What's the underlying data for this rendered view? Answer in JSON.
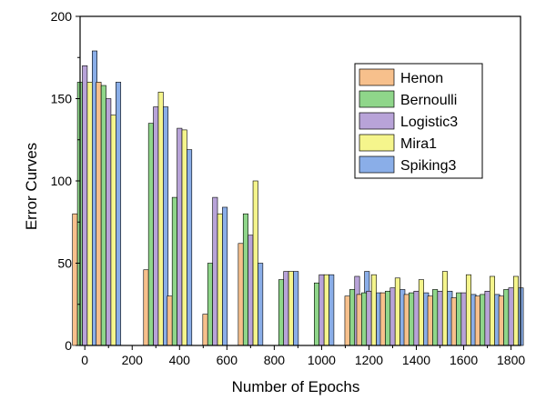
{
  "chart_data": {
    "type": "bar",
    "xlabel": "Number of Epochs",
    "ylabel": "Error Curves",
    "xlim": [
      -20,
      1840
    ],
    "ylim": [
      0,
      200
    ],
    "xticks": [
      0,
      200,
      400,
      600,
      800,
      1000,
      1200,
      1400,
      1600,
      1800
    ],
    "yticks": [
      0,
      50,
      100,
      150,
      200
    ],
    "grid": false,
    "legend_position": "top-right",
    "group_x": [
      0,
      100,
      300,
      400,
      550,
      700,
      850,
      1000,
      1150,
      1200,
      1300,
      1400,
      1500,
      1600,
      1700,
      1800
    ],
    "series": [
      {
        "name": "Henon",
        "color": "#F7C08C",
        "values": [
          80,
          160,
          46,
          30,
          19,
          62,
          0,
          0,
          30,
          31,
          32,
          31,
          30,
          29,
          30,
          30
        ]
      },
      {
        "name": "Bernoulli",
        "color": "#8FD68A",
        "values": [
          160,
          158,
          135,
          90,
          50,
          80,
          40,
          38,
          34,
          32,
          33,
          32,
          34,
          32,
          31,
          34
        ]
      },
      {
        "name": "Logistic3",
        "color": "#B8A3D8",
        "values": [
          170,
          150,
          145,
          132,
          90,
          67,
          45,
          43,
          42,
          33,
          35,
          33,
          33,
          32,
          33,
          35
        ]
      },
      {
        "name": "Mira1",
        "color": "#F5F58C",
        "values": [
          160,
          140,
          154,
          131,
          80,
          100,
          45,
          43,
          0,
          43,
          41,
          40,
          45,
          43,
          42,
          42
        ]
      },
      {
        "name": "Spiking3",
        "color": "#8AAEE8",
        "values": [
          179,
          160,
          145,
          119,
          84,
          50,
          45,
          43,
          45,
          32,
          34,
          32,
          33,
          31,
          31,
          35
        ]
      }
    ]
  }
}
